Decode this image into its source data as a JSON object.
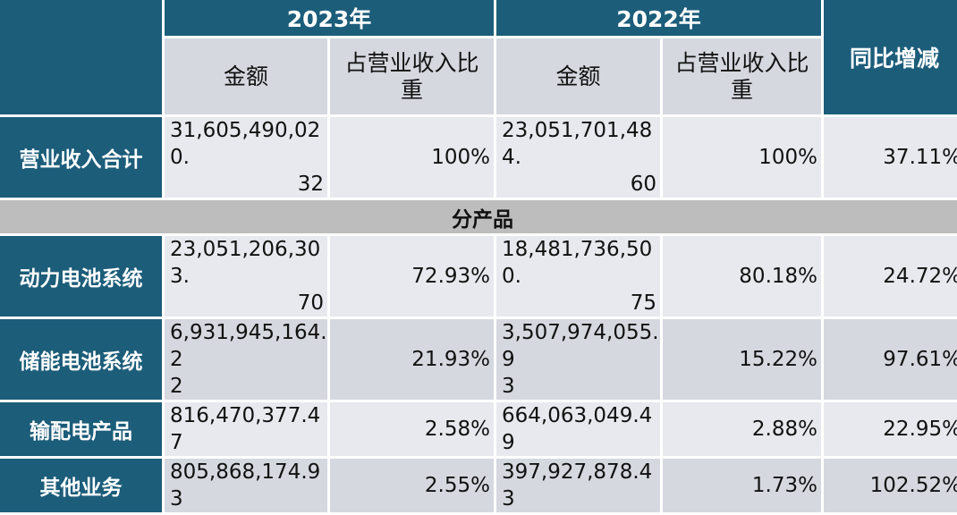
{
  "header": {
    "year_2023": "2023年",
    "year_2022": "2022年",
    "yoy": "同比增减",
    "amount_label": "金额",
    "share_label_line1": "占营业收入比",
    "share_label_line2": "重"
  },
  "section_label": "分产品",
  "rows": [
    {
      "label": "营业收入合计",
      "amt2023_l1": "31,605,490,020.",
      "amt2023_l2": "32",
      "pct2023": "100%",
      "amt2022_l1": "23,051,701,484.",
      "amt2022_l2": "60",
      "pct2022": "100%",
      "yoy": "37.11%"
    },
    {
      "label": "动力电池系统",
      "amt2023_l1": "23,051,206,303.",
      "amt2023_l2": "70",
      "pct2023": "72.93%",
      "amt2022_l1": "18,481,736,500.",
      "amt2022_l2": "75",
      "pct2022": "80.18%",
      "yoy": "24.72%"
    },
    {
      "label": "储能电池系统",
      "amt2023_l1": "6,931,945,164.2",
      "amt2023_l2": "2",
      "pct2023": "21.93%",
      "amt2022_l1": "3,507,974,055.9",
      "amt2022_l2": "3",
      "pct2022": "15.22%",
      "yoy": "97.61%"
    },
    {
      "label": "输配电产品",
      "amt2023_l1": "816,470,377.47",
      "amt2023_l2": "",
      "pct2023": "2.58%",
      "amt2022_l1": "664,063,049.49",
      "amt2022_l2": "",
      "pct2022": "2.88%",
      "yoy": "22.95%"
    },
    {
      "label": "其他业务",
      "amt2023_l1": "805,868,174.93",
      "amt2023_l2": "",
      "pct2023": "2.55%",
      "amt2022_l1": "397,927,878.43",
      "amt2022_l2": "",
      "pct2022": "1.73%",
      "yoy": "102.52%"
    }
  ]
}
